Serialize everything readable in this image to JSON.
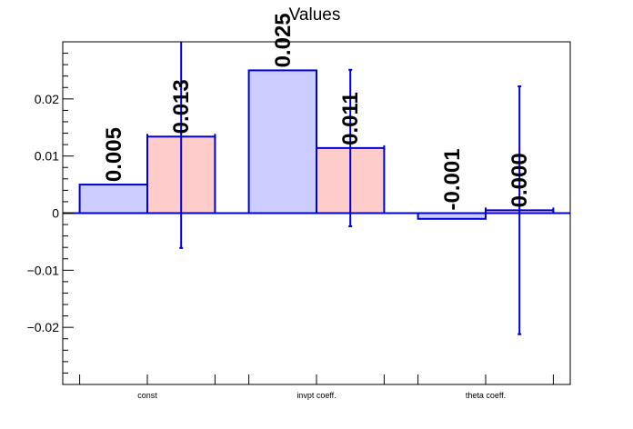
{
  "chart_data": {
    "type": "bar",
    "title": "Values",
    "xlabel": "",
    "ylabel": "",
    "categories": [
      "const",
      "invpt coeff.",
      "theta coeff."
    ],
    "ylim": [
      -0.03,
      0.03
    ],
    "yticks": [
      -0.02,
      -0.01,
      0,
      0.01,
      0.02
    ],
    "ytick_labels": [
      "−0.02",
      "−0.01",
      "0",
      "0.01",
      "0.02"
    ],
    "grid": false,
    "series": [
      {
        "values": [
          0.005,
          0.025,
          -0.001
        ],
        "labels": [
          "0.005",
          "0.025",
          "-0.001"
        ],
        "fill": "#ccccff",
        "stroke": "#0000cc"
      },
      {
        "values": [
          0.0134,
          0.0114,
          0.0005
        ],
        "labels": [
          "0.013",
          "0.011",
          "0.000"
        ],
        "errors": [
          0.0195,
          0.0137,
          0.0217
        ],
        "fill": "#ffcccc",
        "stroke": "#0000cc"
      }
    ]
  }
}
